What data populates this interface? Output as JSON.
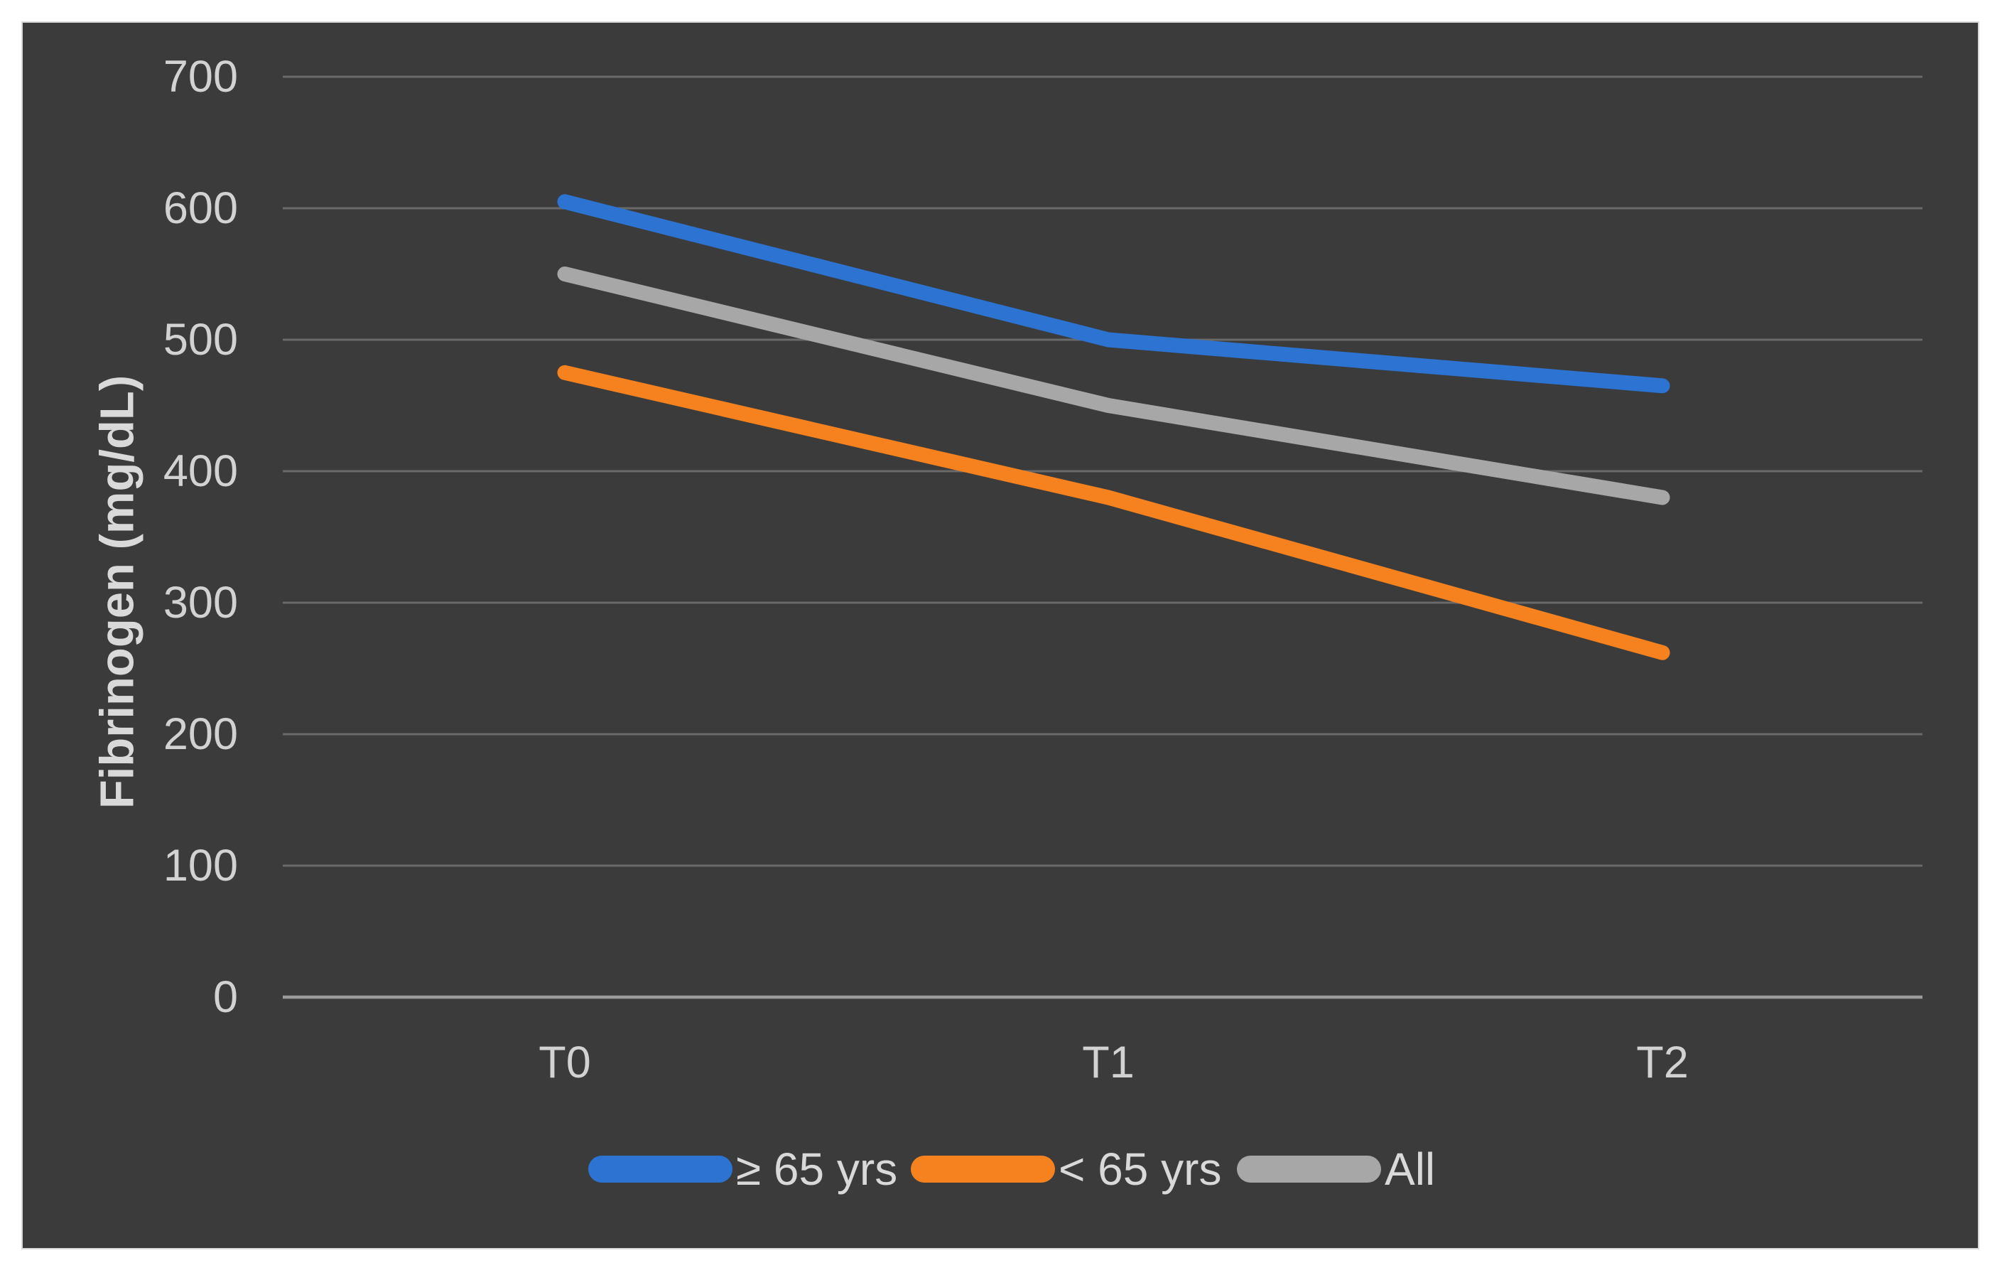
{
  "chart_data": {
    "type": "line",
    "title": "",
    "categories": [
      "T0",
      "T1",
      "T2"
    ],
    "series": [
      {
        "name": "≥ 65 yrs",
        "color": "#2C73D2",
        "values": [
          605,
          500,
          465
        ]
      },
      {
        "name": "< 65 yrs",
        "color": "#F5821F",
        "values": [
          475,
          380,
          262
        ]
      },
      {
        "name": "All",
        "color": "#A7A7A7",
        "values": [
          550,
          450,
          380
        ]
      }
    ],
    "xlabel": "",
    "ylabel": "Fibrinogen (mg/dL)",
    "ylim": [
      0,
      700
    ],
    "yticks": [
      700,
      600,
      500,
      400,
      300,
      200,
      100,
      0
    ],
    "grid": true,
    "legend_position": "bottom"
  },
  "colors": {
    "page_bg": "#FFFFFF",
    "panel_bg": "#3B3B3B",
    "gridline": "#6A6A6A",
    "axis_line": "#9B9B9B",
    "tick_text": "#D2D2D2",
    "legend_text": "#D9D9D9"
  }
}
